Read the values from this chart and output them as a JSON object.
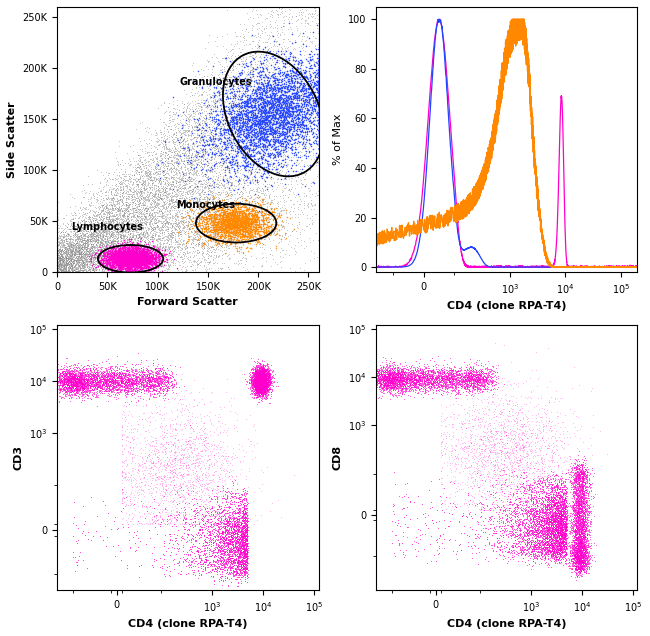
{
  "fig_width": 6.5,
  "fig_height": 6.36,
  "dpi": 100,
  "background_color": "#ffffff",
  "panel_labels": {
    "tl_xlabel": "Forward Scatter",
    "tl_ylabel": "Side Scatter",
    "tr_xlabel": "CD4 (clone RPA-T4)",
    "tr_ylabel": "% of Max",
    "bl_xlabel": "CD4 (clone RPA-T4)",
    "bl_ylabel": "CD3",
    "br_xlabel": "CD4 (clone RPA-T4)",
    "br_ylabel": "CD8"
  },
  "annotations": {
    "granulocytes": "Granulocytes",
    "monocytes": "Monocytes",
    "lymphocytes": "Lymphocytes"
  },
  "seed": 42
}
